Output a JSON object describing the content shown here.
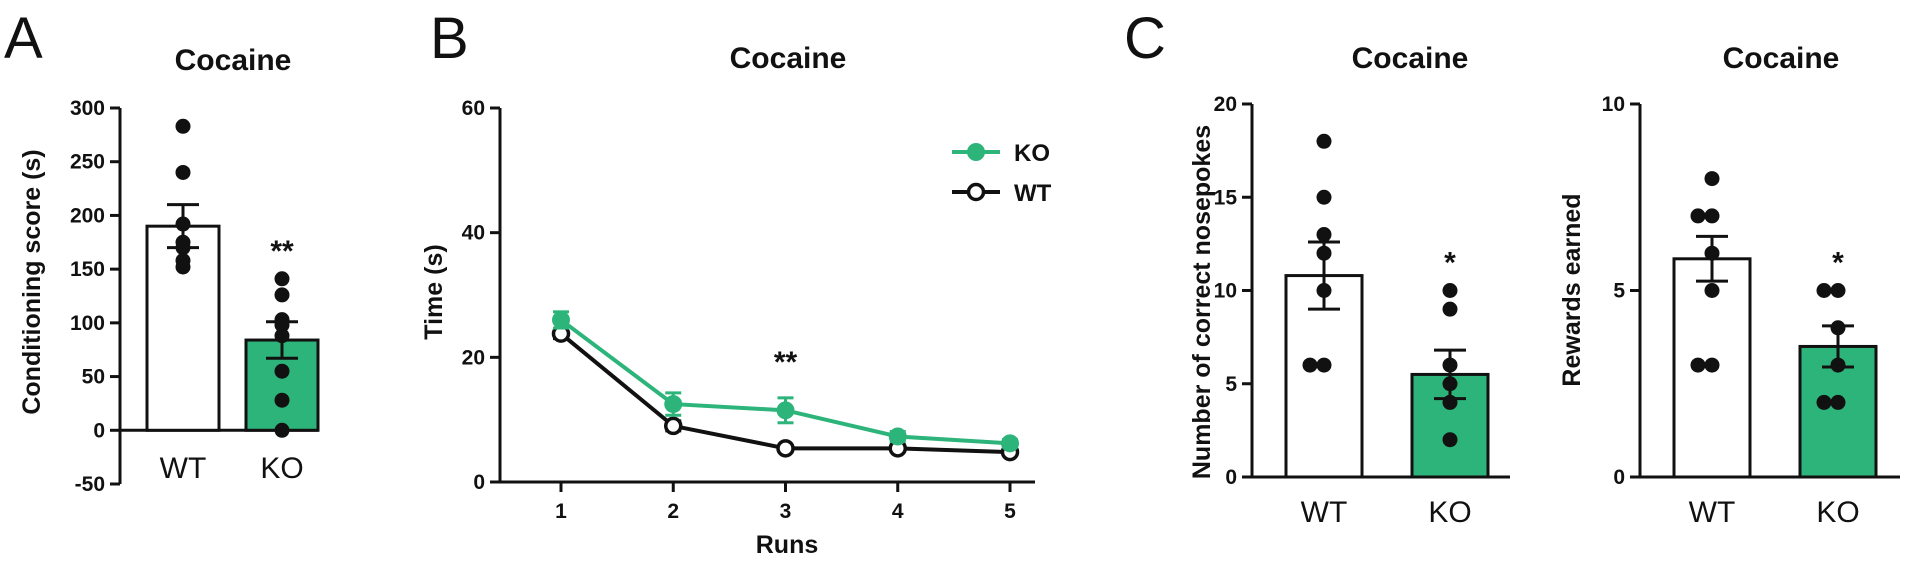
{
  "colors": {
    "ko": "#2db47b",
    "wt": "#ffffff",
    "ink": "#111111"
  },
  "chart_data": [
    {
      "panel": "A",
      "type": "bar",
      "title": "Cocaine",
      "ylabel": "Conditioning score (s)",
      "xlabel": "",
      "ylim": [
        -50,
        300
      ],
      "yticks": [
        -50,
        0,
        50,
        100,
        150,
        200,
        250,
        300
      ],
      "categories": [
        "WT",
        "KO"
      ],
      "values": [
        190,
        84
      ],
      "sem": [
        20,
        17
      ],
      "points": [
        [
          283,
          240,
          192,
          175,
          170,
          158,
          152
        ],
        [
          141,
          126,
          103,
          98,
          88,
          55,
          28,
          0
        ]
      ],
      "significance": [
        "",
        "**"
      ]
    },
    {
      "panel": "B",
      "type": "line",
      "title": "Cocaine",
      "ylabel": "Time (s)",
      "xlabel": "Runs",
      "ylim": [
        0,
        60
      ],
      "yticks": [
        0,
        20,
        40,
        60
      ],
      "x": [
        1,
        2,
        3,
        4,
        5
      ],
      "legend_position": "top-right",
      "series": [
        {
          "name": "KO",
          "values": [
            26,
            12.5,
            11.5,
            7.3,
            6.2
          ],
          "sem": [
            1.3,
            1.8,
            2.0,
            0.8,
            0.6
          ]
        },
        {
          "name": "WT",
          "values": [
            23.8,
            9,
            5.4,
            5.4,
            4.8
          ],
          "sem": [
            0.8,
            0.8,
            0.4,
            0.3,
            0.3
          ]
        }
      ],
      "annotations": [
        {
          "x": 3,
          "text": "**"
        }
      ]
    },
    {
      "panel": "C",
      "type": "bar",
      "title": "Cocaine",
      "ylabel": "Number of correct nosepokes",
      "xlabel": "",
      "ylim": [
        0,
        20
      ],
      "yticks": [
        0,
        5,
        10,
        15,
        20
      ],
      "categories": [
        "WT",
        "KO"
      ],
      "values": [
        10.8,
        5.5
      ],
      "sem": [
        1.8,
        1.3
      ],
      "points": [
        [
          18,
          15,
          13,
          12,
          10,
          6,
          6
        ],
        [
          10,
          9,
          6,
          5,
          4,
          2
        ]
      ],
      "significance": [
        "",
        "*"
      ]
    },
    {
      "panel": "",
      "type": "bar",
      "title": "Cocaine",
      "ylabel": "Rewards earned",
      "xlabel": "",
      "ylim": [
        0,
        10
      ],
      "yticks": [
        0,
        5,
        10
      ],
      "categories": [
        "WT",
        "KO"
      ],
      "values": [
        5.85,
        3.5
      ],
      "sem": [
        0.6,
        0.55
      ],
      "points": [
        [
          8,
          7,
          7,
          6,
          5,
          3,
          3
        ],
        [
          5,
          5,
          4,
          3,
          2,
          2
        ]
      ],
      "significance": [
        "",
        "*"
      ]
    }
  ]
}
